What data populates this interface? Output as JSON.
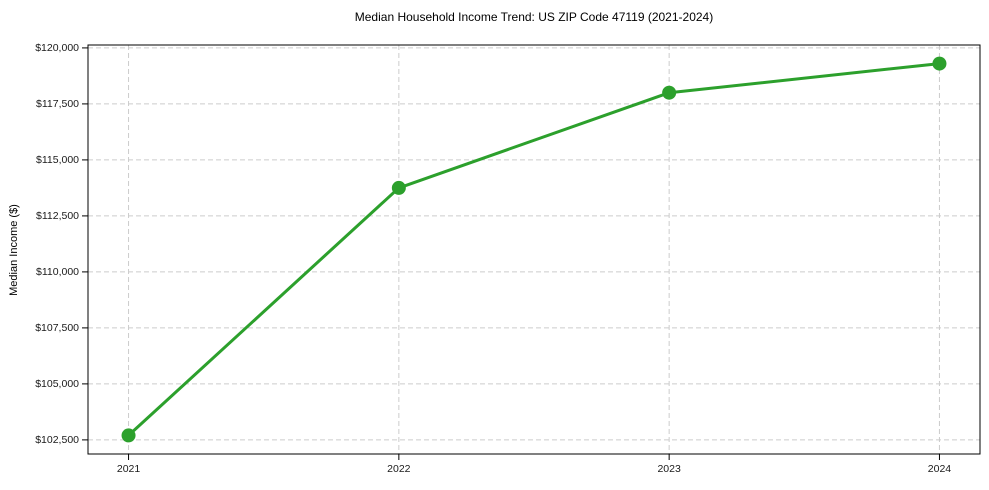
{
  "chart_data": {
    "type": "line",
    "title": "Median Household Income Trend: US ZIP Code 47119 (2021-2024)",
    "xlabel": "",
    "ylabel": "Median Income ($)",
    "series_name": "Median Household Income",
    "x": [
      2021,
      2022,
      2023,
      2024
    ],
    "values": [
      102700,
      113750,
      118000,
      119300
    ],
    "x_tick_labels": [
      "2021",
      "2022",
      "2023",
      "2024"
    ],
    "y_ticks": [
      102500,
      105000,
      107500,
      110000,
      112500,
      115000,
      117500,
      120000
    ],
    "y_tick_labels": [
      "$102,500",
      "$105,000",
      "$107,500",
      "$110,000",
      "$112,500",
      "$115,000",
      "$117,500",
      "$120,000"
    ],
    "xlim": [
      2020.85,
      2024.15
    ],
    "ylim": [
      101870,
      120130
    ],
    "grid": true,
    "grid_style": "dashed",
    "legend_position": "none",
    "marker": "circle",
    "colors": {
      "line": "#2ca02c",
      "marker": "#2ca02c",
      "grid": "#cccccc",
      "spine": "#000000",
      "text": "#1a1a1a",
      "background": "#ffffff"
    }
  }
}
